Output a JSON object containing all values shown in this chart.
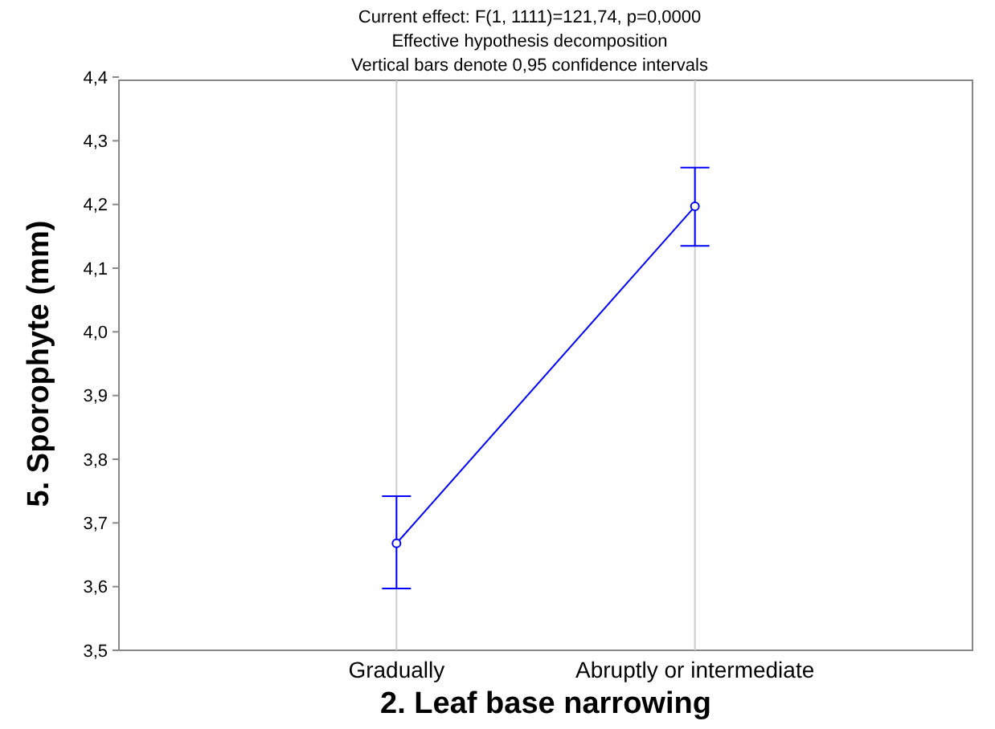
{
  "chart_data": {
    "type": "line",
    "title": "Current effect: F(1, 1111)=121,74, p=0,0000",
    "subtitle": "Effective hypothesis decomposition",
    "annotations": [
      "Vertical bars denote 0,95 confidence intervals"
    ],
    "xlabel": "2. Leaf base narrowing",
    "ylabel": "5. Sporophyte (mm)",
    "categories": [
      "Gradually",
      "Abruptly or intermediate"
    ],
    "series": [
      {
        "color": "#0000ff",
        "values": [
          3.668,
          4.197
        ],
        "errors": [
          [
            3.597,
            3.742
          ],
          [
            4.135,
            4.258
          ]
        ]
      }
    ],
    "ylim": [
      3.5,
      4.4
    ],
    "yticks": [
      {
        "value": 3.5,
        "label": "3,5"
      },
      {
        "value": 3.6,
        "label": "3,6"
      },
      {
        "value": 3.7,
        "label": "3,7"
      },
      {
        "value": 3.8,
        "label": "3,8"
      },
      {
        "value": 3.9,
        "label": "3,9"
      },
      {
        "value": 4.0,
        "label": "4,0"
      },
      {
        "value": 4.1,
        "label": "4,1"
      },
      {
        "value": 4.2,
        "label": "4,2"
      },
      {
        "value": 4.3,
        "label": "4,3"
      },
      {
        "value": 4.4,
        "label": "4,4"
      }
    ],
    "grid": "x",
    "marker": "circle",
    "line_style": "solid"
  }
}
